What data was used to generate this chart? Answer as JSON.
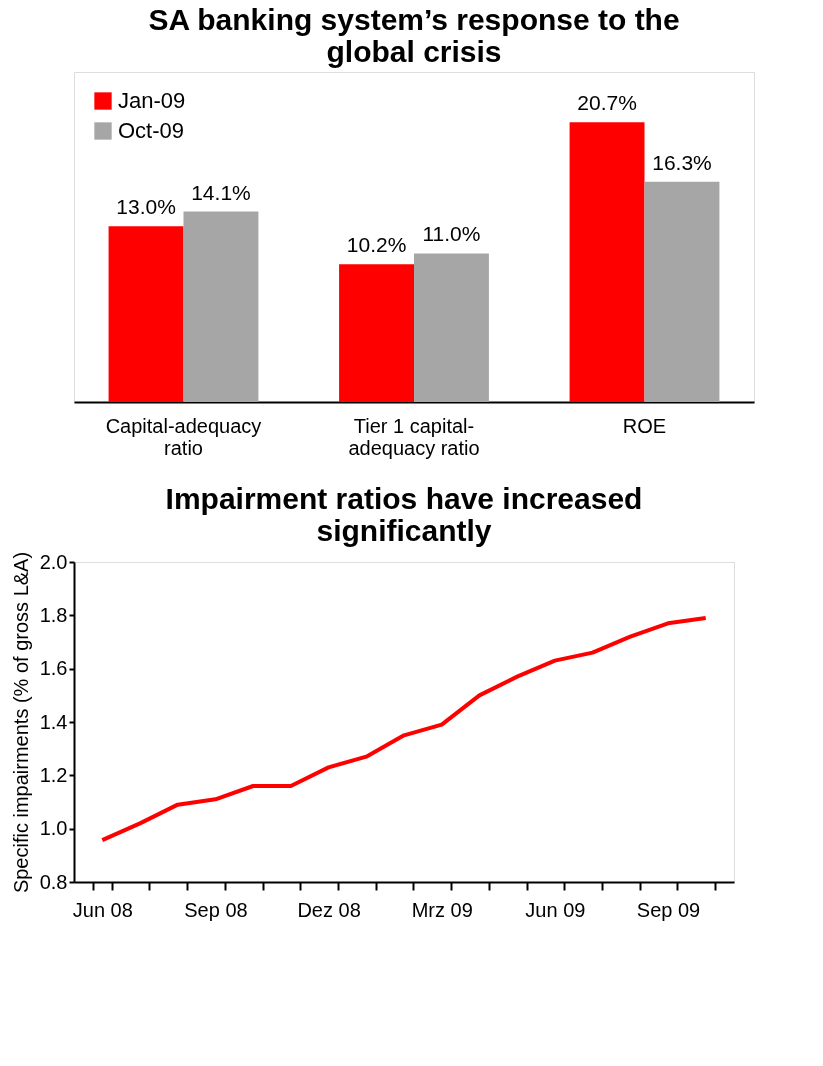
{
  "chart_data": [
    {
      "type": "bar",
      "title": "SA banking system’s response to the global crisis",
      "categories": [
        "Capital-adequacy ratio",
        "Tier 1 capital-adequacy ratio",
        "ROE"
      ],
      "legend": "top left",
      "series": [
        {
          "name": "Jan-09",
          "color": "#ff0000",
          "values": [
            13.0,
            10.2,
            20.7
          ],
          "value_labels": [
            "13.0%",
            "10.2%",
            "20.7%"
          ]
        },
        {
          "name": "Oct-09",
          "color": "#a6a6a6",
          "values": [
            14.1,
            11.0,
            16.3
          ],
          "value_labels": [
            "14.1%",
            "11.0%",
            "16.3%"
          ]
        }
      ]
    },
    {
      "type": "line",
      "title": "Impairment ratios have increased significantly",
      "ylabel": "Specific impairments (% of gross L&A)",
      "categories": [
        "Jun 08",
        null,
        null,
        "Sep 08",
        null,
        null,
        "Dez 08",
        null,
        null,
        "Mrz 09",
        null,
        null,
        "Jun 09",
        null,
        null,
        "Sep 09",
        null
      ],
      "series": [
        {
          "color": "#ff0000",
          "values": [
            0.957,
            1.02,
            1.09,
            1.11,
            1.16,
            1.16,
            1.23,
            1.27,
            1.35,
            1.39,
            1.5,
            1.57,
            1.63,
            1.66,
            1.72,
            1.77,
            1.79
          ]
        }
      ],
      "ylim": [
        0.8,
        2.0
      ],
      "yticks": [
        {
          "value": 0.8,
          "label": "0.8"
        },
        {
          "value": 1.0,
          "label": "1.0"
        },
        1.2,
        1.4,
        1.6,
        {
          "value": 1.8,
          "label": "1.8"
        },
        {
          "value": 2.0,
          "label": "2.0"
        }
      ],
      "grid": false,
      "marker": "none",
      "line_style": "solid"
    }
  ]
}
